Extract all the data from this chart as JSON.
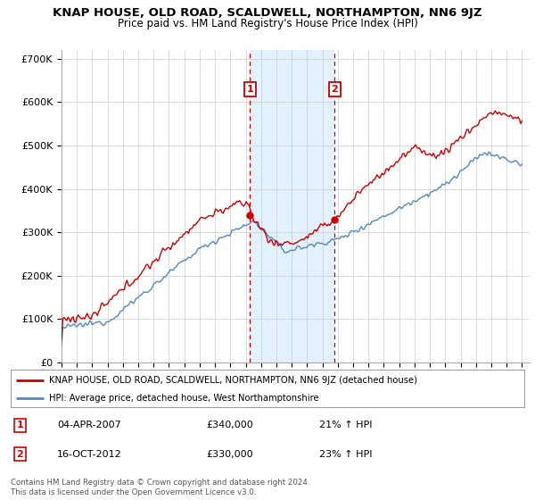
{
  "title": "KNAP HOUSE, OLD ROAD, SCALDWELL, NORTHAMPTON, NN6 9JZ",
  "subtitle": "Price paid vs. HM Land Registry's House Price Index (HPI)",
  "ylim": [
    0,
    720000
  ],
  "yticks": [
    0,
    100000,
    200000,
    300000,
    400000,
    500000,
    600000,
    700000
  ],
  "ytick_labels": [
    "£0",
    "£100K",
    "£200K",
    "£300K",
    "£400K",
    "£500K",
    "£600K",
    "£700K"
  ],
  "xlim_start": 1995,
  "xlim_end": 2025.5,
  "sale1_year": 2007.27,
  "sale1_price": 340000,
  "sale2_year": 2012.79,
  "sale2_price": 330000,
  "red_color": "#cc0000",
  "blue_color": "#5588bb",
  "shade_color": "#ddeeff",
  "grid_color": "#cccccc",
  "bg_color": "#ffffff",
  "legend_entry1": "KNAP HOUSE, OLD ROAD, SCALDWELL, NORTHAMPTON, NN6 9JZ (detached house)",
  "legend_entry2": "HPI: Average price, detached house, West Northamptonshire",
  "row1": [
    "1",
    "04-APR-2007",
    "£340,000",
    "21% ↑ HPI"
  ],
  "row2": [
    "2",
    "16-OCT-2012",
    "£330,000",
    "23% ↑ HPI"
  ],
  "footer": "Contains HM Land Registry data © Crown copyright and database right 2024.\nThis data is licensed under the Open Government Licence v3.0."
}
